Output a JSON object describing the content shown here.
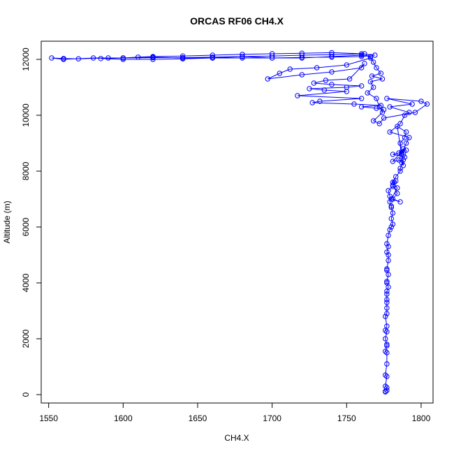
{
  "chart_data": {
    "type": "line",
    "title": "ORCAS RF06 CH4.X",
    "xlabel": "CH4.X",
    "ylabel": "Altitude (m)",
    "xlim": [
      1545,
      1808
    ],
    "ylim": [
      -300,
      12650
    ],
    "xticks": [
      1550,
      1600,
      1650,
      1700,
      1750,
      1800
    ],
    "yticks": [
      0,
      2000,
      4000,
      6000,
      8000,
      10000,
      12000
    ],
    "grid": false,
    "legend": "none",
    "series_color": "#0000ff",
    "marker": "open-circle",
    "series": [
      {
        "x": [
          1776,
          1776,
          1777,
          1777,
          1776,
          1777,
          1776,
          1777,
          1777,
          1776,
          1777,
          1777,
          1776,
          1777,
          1776,
          1777,
          1776,
          1777,
          1777,
          1777,
          1777,
          1777,
          1777,
          1778,
          1777,
          1777,
          1778,
          1777,
          1777,
          1778,
          1778,
          1777,
          1778,
          1777,
          1778,
          1779,
          1780,
          1781,
          1780,
          1781,
          1780,
          1780,
          1779,
          1779,
          1778,
          1781,
          1782,
          1783,
          1781,
          1784,
          1781,
          1786,
          1780,
          1784,
          1781,
          1783,
          1786,
          1786,
          1788,
          1781,
          1787,
          1785,
          1781,
          1789,
          1790,
          1788,
          1787,
          1786,
          1789,
          1790,
          1784,
          1788,
          1787,
          1785,
          1787,
          1790,
          1792,
          1779,
          1786,
          1789,
          1792,
          1779,
          1794,
          1777,
          1800,
          1804,
          1796,
          1775,
          1772,
          1768,
          1774,
          1772,
          1770,
          1764,
          1768,
          1766,
          1774,
          1767,
          1773,
          1770,
          1768,
          1766,
          1760,
          1740,
          1720,
          1700,
          1680,
          1660,
          1640,
          1620,
          1600,
          1580,
          1560,
          1552,
          1560,
          1570,
          1590,
          1600,
          1610,
          1620,
          1640,
          1660,
          1680,
          1700,
          1720,
          1740,
          1760,
          1769,
          1760,
          1740,
          1720,
          1700,
          1680,
          1660,
          1640,
          1620,
          1600,
          1585,
          1600,
          1620,
          1640,
          1660,
          1680,
          1700,
          1720,
          1740,
          1762,
          1766,
          1750,
          1730,
          1712,
          1705,
          1697,
          1720,
          1740,
          1760,
          1762,
          1752,
          1736,
          1728,
          1740,
          1760,
          1750,
          1725,
          1735,
          1750,
          1717,
          1760,
          1732,
          1727,
          1755,
          1773,
          1760,
          1770,
          1775
        ],
        "y": [
          100,
          120,
          150,
          250,
          300,
          650,
          700,
          1100,
          1500,
          1550,
          1750,
          1800,
          2000,
          2250,
          2300,
          2450,
          2800,
          2900,
          3100,
          3300,
          3400,
          3600,
          3700,
          3850,
          4000,
          4050,
          4300,
          4450,
          4500,
          4800,
          5000,
          5100,
          5300,
          5400,
          5700,
          5900,
          6000,
          6100,
          6300,
          6500,
          6700,
          6750,
          6900,
          7100,
          7300,
          7450,
          7600,
          7650,
          7500,
          7200,
          7000,
          6900,
          7000,
          7400,
          7600,
          7800,
          8000,
          8100,
          8400,
          8350,
          8700,
          8650,
          8600,
          8500,
          8750,
          8800,
          8650,
          9000,
          9200,
          9400,
          9600,
          8200,
          8300,
          8400,
          8600,
          9000,
          9200,
          9400,
          9700,
          10000,
          10100,
          10300,
          10400,
          10600,
          10500,
          10400,
          10100,
          9900,
          9700,
          9800,
          10100,
          10300,
          10600,
          10800,
          11000,
          11200,
          11300,
          11400,
          11500,
          11700,
          11900,
          12100,
          12150,
          12100,
          12050,
          12050,
          12100,
          12050,
          12050,
          12080,
          12050,
          12050,
          12000,
          12050,
          12030,
          12020,
          12050,
          12050,
          12080,
          12100,
          12120,
          12150,
          12180,
          12200,
          12220,
          12240,
          12200,
          12150,
          12100,
          12080,
          12070,
          12050,
          12050,
          12050,
          12020,
          12000,
          12000,
          12030,
          12050,
          12060,
          12060,
          12080,
          12100,
          12120,
          12150,
          12170,
          12200,
          12050,
          11800,
          11700,
          11650,
          11500,
          11300,
          11450,
          11550,
          11700,
          11850,
          11300,
          11250,
          11150,
          11100,
          11050,
          11000,
          10950,
          10900,
          10850,
          10700,
          10600,
          10500,
          10450,
          10400,
          10350,
          10300,
          10250,
          10200
        ]
      }
    ]
  }
}
